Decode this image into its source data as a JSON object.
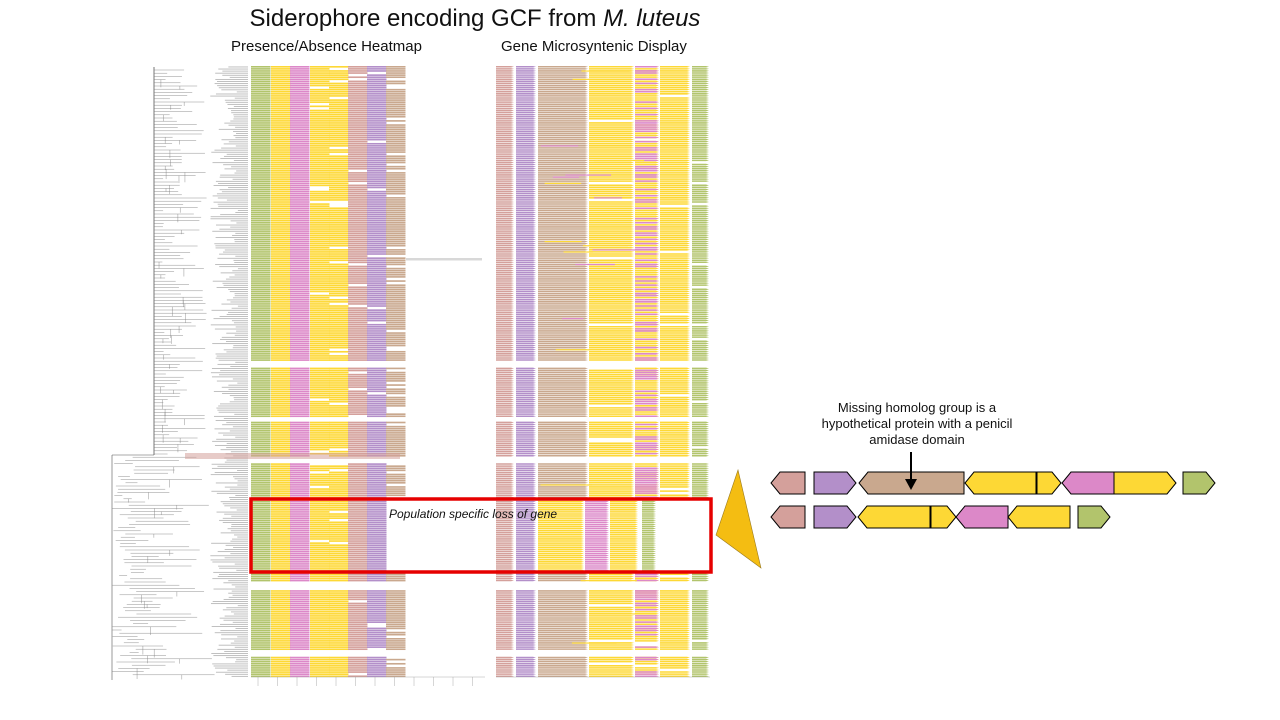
{
  "title": {
    "prefix": "Siderophore encoding GCF from ",
    "species": "M. luteus"
  },
  "panels": {
    "heatmap_title": "Presence/Absence Heatmap",
    "synteny_title": "Gene Microsyntenic Display"
  },
  "annotations": {
    "missing_homolog": "Missing homolog group is a hypothetical protein with a penicil amidase domain",
    "population_loss": "Population specific loss of gene"
  },
  "colors": {
    "rose": "#d4a09b",
    "lavender": "#b38fc9",
    "tan": "#c9a88e",
    "yellow": "#fdd835",
    "pink": "#dc88c8",
    "olive": "#b2c46c",
    "highlight": "#e60000",
    "callout": "#f4bd12"
  },
  "gene_maps": {
    "full_cluster": [
      "rose",
      "lavender",
      "tan",
      "yellow",
      "yellow",
      "pink",
      "yellow",
      "olive"
    ],
    "reduced_cluster": [
      "rose",
      "lavender",
      "yellow",
      "yellow",
      "pink",
      "yellow",
      "olive"
    ]
  }
}
